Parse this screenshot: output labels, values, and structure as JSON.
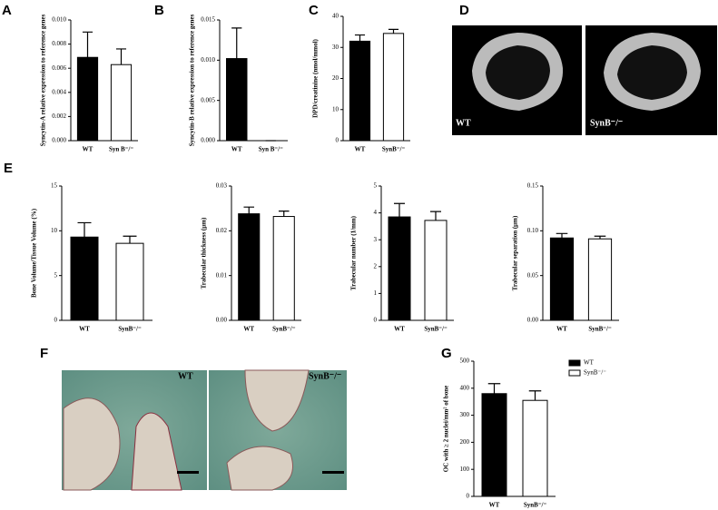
{
  "chart_data": [
    {
      "panel": "A",
      "type": "bar",
      "ylabel": "Syncytin-A relative expression to reference genes",
      "categories": [
        "WT",
        "Syn B⁻/⁻"
      ],
      "values": [
        0.0069,
        0.0063
      ],
      "errors": [
        0.0021,
        0.0013
      ],
      "colors": [
        "#000000",
        "#ffffff"
      ],
      "ylim": [
        0,
        0.01
      ],
      "yticks": [
        {
          "value": 0,
          "label": "0.000"
        },
        {
          "value": 0.002,
          "label": "0.002"
        },
        {
          "value": 0.004,
          "label": "0.004"
        },
        {
          "value": 0.006,
          "label": "0.006"
        },
        {
          "value": 0.008,
          "label": "0.008"
        },
        {
          "value": 0.01,
          "label": "0.010"
        }
      ]
    },
    {
      "panel": "B",
      "type": "bar",
      "ylabel": "Syncytin-B relative expression to reference genes",
      "categories": [
        "WT",
        "Syn B⁻/⁻"
      ],
      "values": [
        0.0102,
        0
      ],
      "errors": [
        0.0038,
        0
      ],
      "colors": [
        "#000000",
        "#ffffff"
      ],
      "ylim": [
        0,
        0.015
      ],
      "yticks": [
        {
          "value": 0,
          "label": "0.000"
        },
        {
          "value": 0.005,
          "label": "0.005"
        },
        {
          "value": 0.01,
          "label": "0.010"
        },
        {
          "value": 0.015,
          "label": "0.015"
        }
      ]
    },
    {
      "panel": "C",
      "type": "bar",
      "ylabel": "DPD/creatinine (nmol/mmol)",
      "categories": [
        "WT",
        "SynB⁻/⁻"
      ],
      "values": [
        32,
        34.5
      ],
      "errors": [
        2,
        1.3
      ],
      "colors": [
        "#000000",
        "#ffffff"
      ],
      "ylim": [
        0,
        40
      ],
      "yticks": [
        0,
        10,
        20,
        30,
        40
      ]
    },
    {
      "panel": "E",
      "type": "bar",
      "ylabel": "Bone Volume/Tissue Volume (%)",
      "categories": [
        "WT",
        "SynB⁻/⁻"
      ],
      "values": [
        9.3,
        8.6
      ],
      "errors": [
        1.6,
        0.8
      ],
      "colors": [
        "#000000",
        "#ffffff"
      ],
      "ylim": [
        0,
        15
      ],
      "yticks": [
        0,
        5,
        10,
        15
      ]
    },
    {
      "type": "bar",
      "ylabel": "Trabecular thickness (μm)",
      "categories": [
        "WT",
        "SynB⁻/⁻"
      ],
      "values": [
        0.0238,
        0.0232
      ],
      "errors": [
        0.0015,
        0.0012
      ],
      "colors": [
        "#000000",
        "#ffffff"
      ],
      "ylim": [
        0,
        0.03
      ],
      "yticks": [
        {
          "value": 0,
          "label": "0.00"
        },
        {
          "value": 0.01,
          "label": "0.01"
        },
        {
          "value": 0.02,
          "label": "0.02"
        },
        {
          "value": 0.03,
          "label": "0.03"
        }
      ]
    },
    {
      "type": "bar",
      "ylabel": "Trabecular number (1/mm)",
      "categories": [
        "WT",
        "SynB⁻/⁻"
      ],
      "values": [
        3.85,
        3.72
      ],
      "errors": [
        0.5,
        0.33
      ],
      "colors": [
        "#000000",
        "#ffffff"
      ],
      "ylim": [
        0,
        5
      ],
      "yticks": [
        0,
        1,
        2,
        3,
        4,
        5
      ]
    },
    {
      "type": "bar",
      "ylabel": "Trabecular separation (μm)",
      "categories": [
        "WT",
        "SynB⁻/⁻"
      ],
      "values": [
        0.092,
        0.091
      ],
      "errors": [
        0.005,
        0.003
      ],
      "colors": [
        "#000000",
        "#ffffff"
      ],
      "ylim": [
        0,
        0.15
      ],
      "yticks": [
        {
          "value": 0,
          "label": "0.00"
        },
        {
          "value": 0.05,
          "label": "0.05"
        },
        {
          "value": 0.1,
          "label": "0.10"
        },
        {
          "value": 0.15,
          "label": "0.15"
        }
      ]
    },
    {
      "panel": "G",
      "type": "bar",
      "ylabel": "OC with ≥ 2 nuclei/mm² of bone",
      "categories": [
        "WT",
        "SynB⁻/⁻"
      ],
      "values": [
        380,
        355
      ],
      "errors": [
        37,
        35
      ],
      "colors": [
        "#000000",
        "#ffffff"
      ],
      "ylim": [
        0,
        500
      ],
      "yticks": [
        0,
        100,
        200,
        300,
        400,
        500
      ],
      "legend": true
    }
  ],
  "images": [
    {
      "panel": "D",
      "labels": [
        "WT",
        "SynB⁻/⁻"
      ]
    },
    {
      "panel": "F",
      "labels": [
        "WT",
        "SynB⁻/⁻"
      ]
    }
  ]
}
